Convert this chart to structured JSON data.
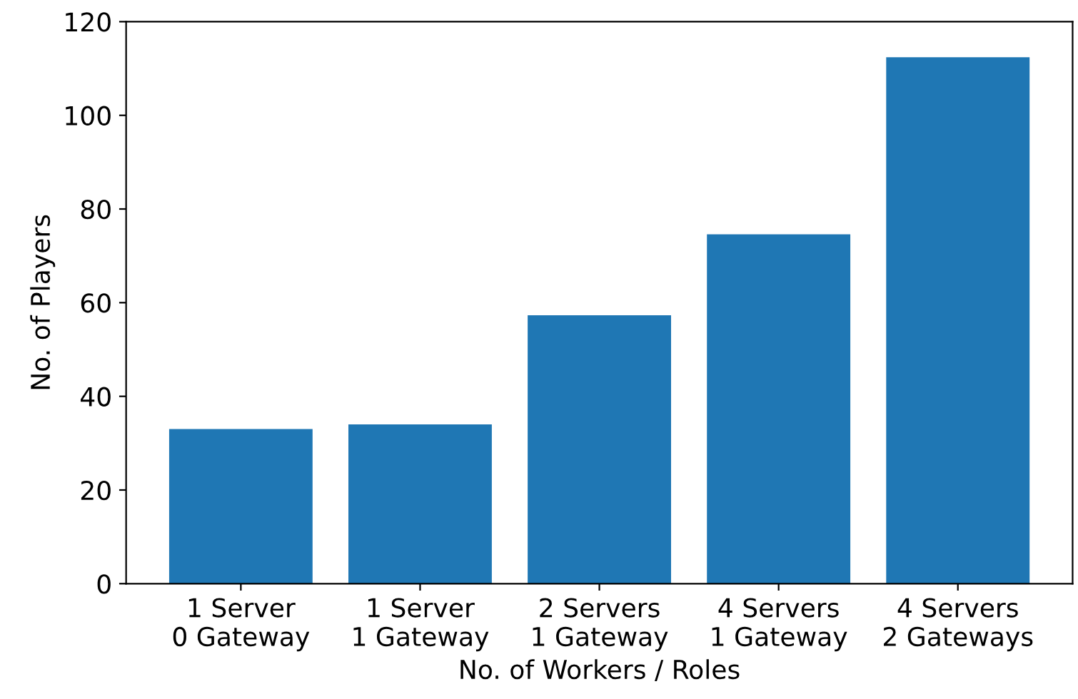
{
  "chart_data": {
    "type": "bar",
    "xlabel": "No. of Workers / Roles",
    "ylabel": "No. of Players",
    "categories": [
      "1 Server\n0 Gateway",
      "1 Server\n1 Gateway",
      "2 Servers\n1 Gateway",
      "4 Servers\n1 Gateway",
      "4 Servers\n2 Gateways"
    ],
    "values": [
      33,
      34,
      57.3,
      74.6,
      112.4
    ],
    "color": "#1f77b4",
    "ylim": [
      0,
      120
    ],
    "yticks": [
      0,
      20,
      40,
      60,
      80,
      100,
      120
    ],
    "grid": false,
    "legend": false
  }
}
